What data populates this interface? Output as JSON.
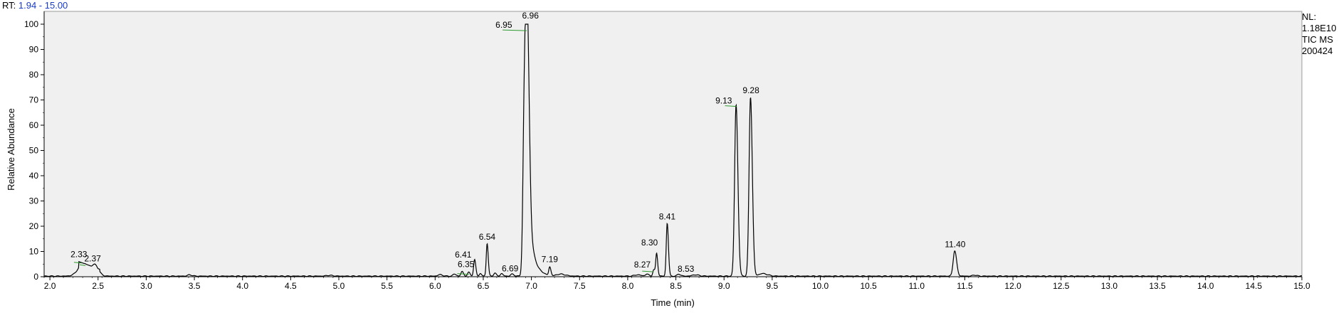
{
  "header": {
    "rt_prefix": "RT:",
    "rt_range": "1.94 - 15.00"
  },
  "side_info": {
    "nl_label": "NL:",
    "nl_value": "1.18E10",
    "scan_filter": "TIC  MS",
    "file_name": "200424"
  },
  "colors": {
    "plot_background": "#f0f0f0",
    "trace": "#000000",
    "baseline_marker": "#2f9a2f",
    "rt_range_text": "#1a3cc8"
  },
  "chart_data": {
    "type": "line",
    "title": "",
    "xlabel": "Time (min)",
    "ylabel": "Relative Abundance",
    "xlim": [
      1.94,
      15.0
    ],
    "ylim": [
      0,
      100
    ],
    "grid": false,
    "x_ticks": [
      "2.0",
      "2.5",
      "3.0",
      "3.5",
      "4.0",
      "4.5",
      "5.0",
      "5.5",
      "6.0",
      "6.5",
      "7.0",
      "7.5",
      "8.0",
      "8.5",
      "9.0",
      "9.5",
      "10.0",
      "10.5",
      "11.0",
      "11.5",
      "12.0",
      "12.5",
      "13.0",
      "13.5",
      "14.0",
      "14.5",
      "15.0"
    ],
    "y_ticks": [
      "0",
      "10",
      "20",
      "30",
      "40",
      "50",
      "60",
      "70",
      "80",
      "90",
      "100"
    ],
    "peaks": [
      {
        "rt": 2.33,
        "label": "2.33",
        "height": 6
      },
      {
        "rt": 2.37,
        "label": "2.37",
        "height": 5
      },
      {
        "rt": 6.35,
        "label": "6.35",
        "height": 1.5
      },
      {
        "rt": 6.41,
        "label": "6.41",
        "height": 6.5
      },
      {
        "rt": 6.54,
        "label": "6.54",
        "height": 13
      },
      {
        "rt": 6.69,
        "label": "6.69",
        "height": 1
      },
      {
        "rt": 6.95,
        "label": "6.95",
        "height": 98
      },
      {
        "rt": 6.96,
        "label": "6.96",
        "height": 100
      },
      {
        "rt": 7.19,
        "label": "7.19",
        "height": 3.5
      },
      {
        "rt": 8.27,
        "label": "8.27",
        "height": 2.5
      },
      {
        "rt": 8.3,
        "label": "8.30",
        "height": 9
      },
      {
        "rt": 8.41,
        "label": "8.41",
        "height": 21
      },
      {
        "rt": 8.53,
        "label": "8.53",
        "height": 0.8
      },
      {
        "rt": 9.13,
        "label": "9.13",
        "height": 68
      },
      {
        "rt": 9.28,
        "label": "9.28",
        "height": 71
      },
      {
        "rt": 11.4,
        "label": "11.40",
        "height": 10
      }
    ]
  }
}
